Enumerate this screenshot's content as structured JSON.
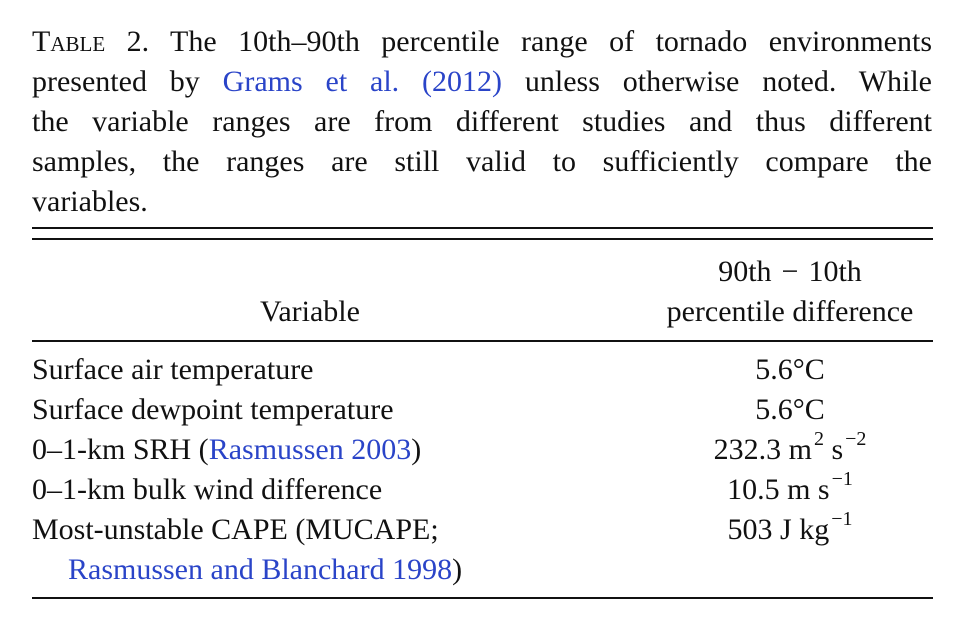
{
  "caption": {
    "label": "Table 2.",
    "lines": [
      " The 10th–90th percentile range of tornado environments",
      "presented by ",
      " unless otherwise noted. While",
      "the variable ranges are from different studies and thus different",
      "samples, the ranges are still valid to sufficiently compare the",
      "variables."
    ],
    "citation": "Grams et al. (2012)"
  },
  "table": {
    "header": {
      "variable": "Variable",
      "diff_line1_a": "90th",
      "diff_line1_minus": "−",
      "diff_line1_b": "10th",
      "diff_line2": "percentile difference"
    },
    "rows": [
      {
        "variable": "Surface air temperature",
        "value": "5.6°C"
      },
      {
        "variable": "Surface dewpoint temperature",
        "value": "5.6°C"
      },
      {
        "variable_prefix": "0–1-km SRH (",
        "citation": "Rasmussen 2003",
        "variable_suffix": ")",
        "value_base": "232.3 m",
        "sup1": "2",
        "value_mid": " s",
        "sup2": "−2"
      },
      {
        "variable": "0–1-km bulk wind difference",
        "value_base": "10.5 m s",
        "sup": "−1"
      },
      {
        "variable": "Most-unstable CAPE (MUCAPE;",
        "value_base": "503 J kg",
        "sup": "−1"
      },
      {
        "citation": "Rasmussen and Blanchard 1998",
        "variable_suffix": ")"
      }
    ]
  }
}
